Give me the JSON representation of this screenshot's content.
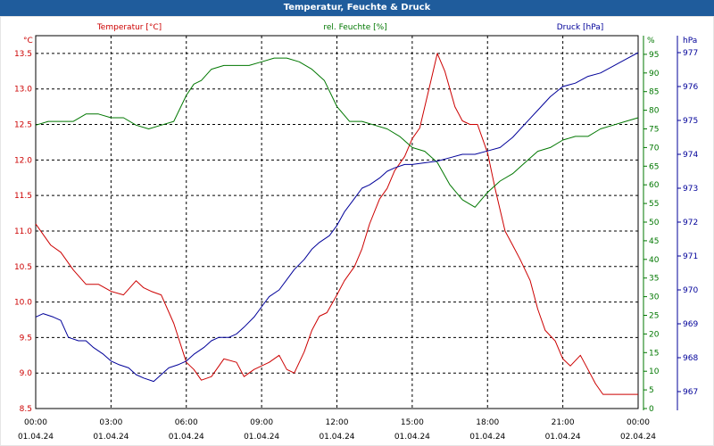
{
  "window": {
    "title": "Temperatur, Feuchte & Druck"
  },
  "chart_data": {
    "type": "line",
    "title": "Temperatur, Feuchte & Druck",
    "grid": true,
    "x": {
      "range": [
        "00:00",
        "00:00"
      ],
      "tick_labels": [
        {
          "time": "00:00",
          "date": "01.04.24"
        },
        {
          "time": "03:00",
          "date": "01.04.24"
        },
        {
          "time": "06:00",
          "date": "01.04.24"
        },
        {
          "time": "09:00",
          "date": "01.04.24"
        },
        {
          "time": "12:00",
          "date": "01.04.24"
        },
        {
          "time": "15:00",
          "date": "01.04.24"
        },
        {
          "time": "18:00",
          "date": "01.04.24"
        },
        {
          "time": "21:00",
          "date": "01.04.24"
        },
        {
          "time": "00:00",
          "date": "02.04.24"
        }
      ]
    },
    "axes": {
      "temperature": {
        "unit": "°C",
        "side": "left",
        "ylim": [
          8.5,
          13.75
        ],
        "ticks": [
          "8.5",
          "9.0",
          "9.5",
          "10.0",
          "10.5",
          "11.0",
          "11.5",
          "12.0",
          "12.5",
          "13.0",
          "13.5"
        ]
      },
      "humidity": {
        "unit": "%",
        "side": "right",
        "ylim": [
          0,
          100
        ],
        "ticks": [
          "0",
          "5",
          "10",
          "15",
          "20",
          "25",
          "30",
          "35",
          "40",
          "45",
          "50",
          "55",
          "60",
          "65",
          "70",
          "75",
          "80",
          "85",
          "90",
          "95"
        ]
      },
      "pressure": {
        "unit": "hPa",
        "side": "right",
        "ylim": [
          966.5,
          977.5
        ],
        "ticks": [
          "967",
          "968",
          "969",
          "970",
          "971",
          "972",
          "973",
          "974",
          "975",
          "976",
          "977"
        ]
      }
    },
    "series": [
      {
        "name": "Temperatur [°C]",
        "axis": "temperature",
        "color": "#cc0000",
        "x_hours": [
          0,
          0.3,
          0.6,
          1,
          1.5,
          2,
          2.5,
          3,
          3.5,
          4,
          4.3,
          4.6,
          5,
          5.5,
          6,
          6.3,
          6.6,
          7,
          7.5,
          8,
          8.3,
          8.7,
          9,
          9.3,
          9.7,
          10,
          10.3,
          10.7,
          11,
          11.3,
          11.6,
          12,
          12.3,
          12.7,
          13,
          13.3,
          13.7,
          14,
          14.3,
          14.7,
          15,
          15.3,
          15.7,
          16,
          16.3,
          16.7,
          17,
          17.3,
          17.6,
          18,
          18.3,
          18.7,
          19,
          19.3,
          19.7,
          20,
          20.3,
          20.7,
          21,
          21.3,
          21.7,
          22,
          22.3,
          22.6,
          23,
          23.3,
          23.6,
          24
        ],
        "values": [
          11.1,
          10.95,
          10.8,
          10.7,
          10.45,
          10.25,
          10.25,
          10.15,
          10.1,
          10.3,
          10.2,
          10.15,
          10.1,
          9.7,
          9.15,
          9.05,
          8.9,
          8.95,
          9.2,
          9.15,
          8.95,
          9.05,
          9.1,
          9.15,
          9.25,
          9.05,
          9.0,
          9.3,
          9.6,
          9.8,
          9.85,
          10.1,
          10.3,
          10.5,
          10.75,
          11.1,
          11.45,
          11.6,
          11.85,
          12.05,
          12.3,
          12.45,
          13.05,
          13.5,
          13.25,
          12.75,
          12.55,
          12.5,
          12.5,
          12.1,
          11.6,
          11.0,
          10.8,
          10.6,
          10.3,
          9.9,
          9.6,
          9.45,
          9.2,
          9.1,
          9.25,
          9.05,
          8.85,
          8.7,
          8.7,
          8.7,
          8.7,
          8.7
        ]
      },
      {
        "name": "rel. Feuchte [%]",
        "axis": "humidity",
        "color": "#007700",
        "x_hours": [
          0,
          0.5,
          1,
          1.5,
          2,
          2.5,
          3,
          3.5,
          4,
          4.5,
          5,
          5.5,
          6,
          6.3,
          6.6,
          7,
          7.5,
          8,
          8.5,
          9,
          9.5,
          10,
          10.5,
          11,
          11.5,
          12,
          12.5,
          13,
          13.5,
          14,
          14.5,
          15,
          15.5,
          16,
          16.5,
          17,
          17.5,
          18,
          18.5,
          19,
          19.5,
          20,
          20.5,
          21,
          21.5,
          22,
          22.5,
          23,
          23.5,
          24
        ],
        "values": [
          76,
          77,
          77,
          77,
          79,
          79,
          78,
          78,
          76,
          75,
          76,
          77,
          84,
          87,
          88,
          91,
          92,
          92,
          92,
          93,
          94,
          94,
          93,
          91,
          88,
          81,
          77,
          77,
          76,
          75,
          73,
          70,
          69,
          66,
          60,
          56,
          54,
          58,
          61,
          63,
          66,
          69,
          70,
          72,
          73,
          73,
          75,
          76,
          77,
          78
        ]
      },
      {
        "name": "Druck [hPa]",
        "axis": "pressure",
        "color": "#000099",
        "x_hours": [
          0,
          0.3,
          0.7,
          1,
          1.3,
          1.7,
          2,
          2.3,
          2.7,
          3,
          3.3,
          3.7,
          4,
          4.3,
          4.7,
          5,
          5.3,
          5.7,
          6,
          6.3,
          6.7,
          7,
          7.3,
          7.7,
          8,
          8.3,
          8.7,
          9,
          9.3,
          9.7,
          10,
          10.3,
          10.7,
          11,
          11.3,
          11.7,
          12,
          12.3,
          12.7,
          13,
          13.3,
          13.7,
          14,
          14.3,
          14.7,
          15,
          15.5,
          16,
          16.5,
          17,
          17.5,
          18,
          18.5,
          19,
          19.5,
          20,
          20.5,
          21,
          21.5,
          22,
          22.5,
          23,
          23.5,
          24
        ],
        "values": [
          969.2,
          969.3,
          969.2,
          969.1,
          968.6,
          968.5,
          968.5,
          968.3,
          968.1,
          967.9,
          967.8,
          967.7,
          967.5,
          967.4,
          967.3,
          967.5,
          967.7,
          967.8,
          967.9,
          968.1,
          968.3,
          968.5,
          968.6,
          968.6,
          968.7,
          968.9,
          969.2,
          969.5,
          969.8,
          970.0,
          970.3,
          970.6,
          970.9,
          971.2,
          971.4,
          971.6,
          971.9,
          972.3,
          972.7,
          973.0,
          973.1,
          973.3,
          973.5,
          973.6,
          973.7,
          973.7,
          973.75,
          973.8,
          973.9,
          974.0,
          974.0,
          974.1,
          974.2,
          974.5,
          974.9,
          975.3,
          975.7,
          976.0,
          976.1,
          976.3,
          976.4,
          976.6,
          976.8,
          977.0
        ]
      }
    ]
  }
}
